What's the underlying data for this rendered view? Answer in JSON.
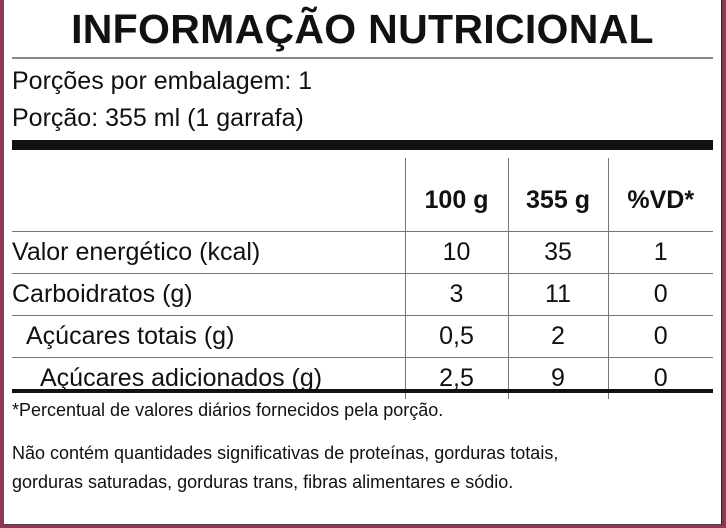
{
  "title": "INFORMAÇÃO NUTRICIONAL",
  "servings_per_package": "Porções por embalagem: 1",
  "serving_size": "Porção: 355 ml (1 garrafa)",
  "columns": [
    "",
    "100 g",
    "355 g",
    "%VD*"
  ],
  "rows": [
    {
      "label": "Valor energético (kcal)",
      "indent": 0,
      "values": [
        "10",
        "35",
        "1"
      ]
    },
    {
      "label": "Carboidratos (g)",
      "indent": 0,
      "values": [
        "3",
        "11",
        "0"
      ]
    },
    {
      "label": "Açúcares totais (g)",
      "indent": 1,
      "values": [
        "0,5",
        "2",
        "0"
      ]
    },
    {
      "label": "Açúcares adicionados (g)",
      "indent": 2,
      "values": [
        "2,5",
        "9",
        "0"
      ]
    }
  ],
  "footnote": "*Percentual de valores diários fornecidos pela porção.",
  "note_line1": "Não contém quantidades significativas de proteínas, gorduras totais,",
  "note_line2": "gorduras saturadas, gorduras trans, fibras alimentares e sódio.",
  "colors": {
    "frame": "#8b3a52",
    "text": "#111111"
  }
}
